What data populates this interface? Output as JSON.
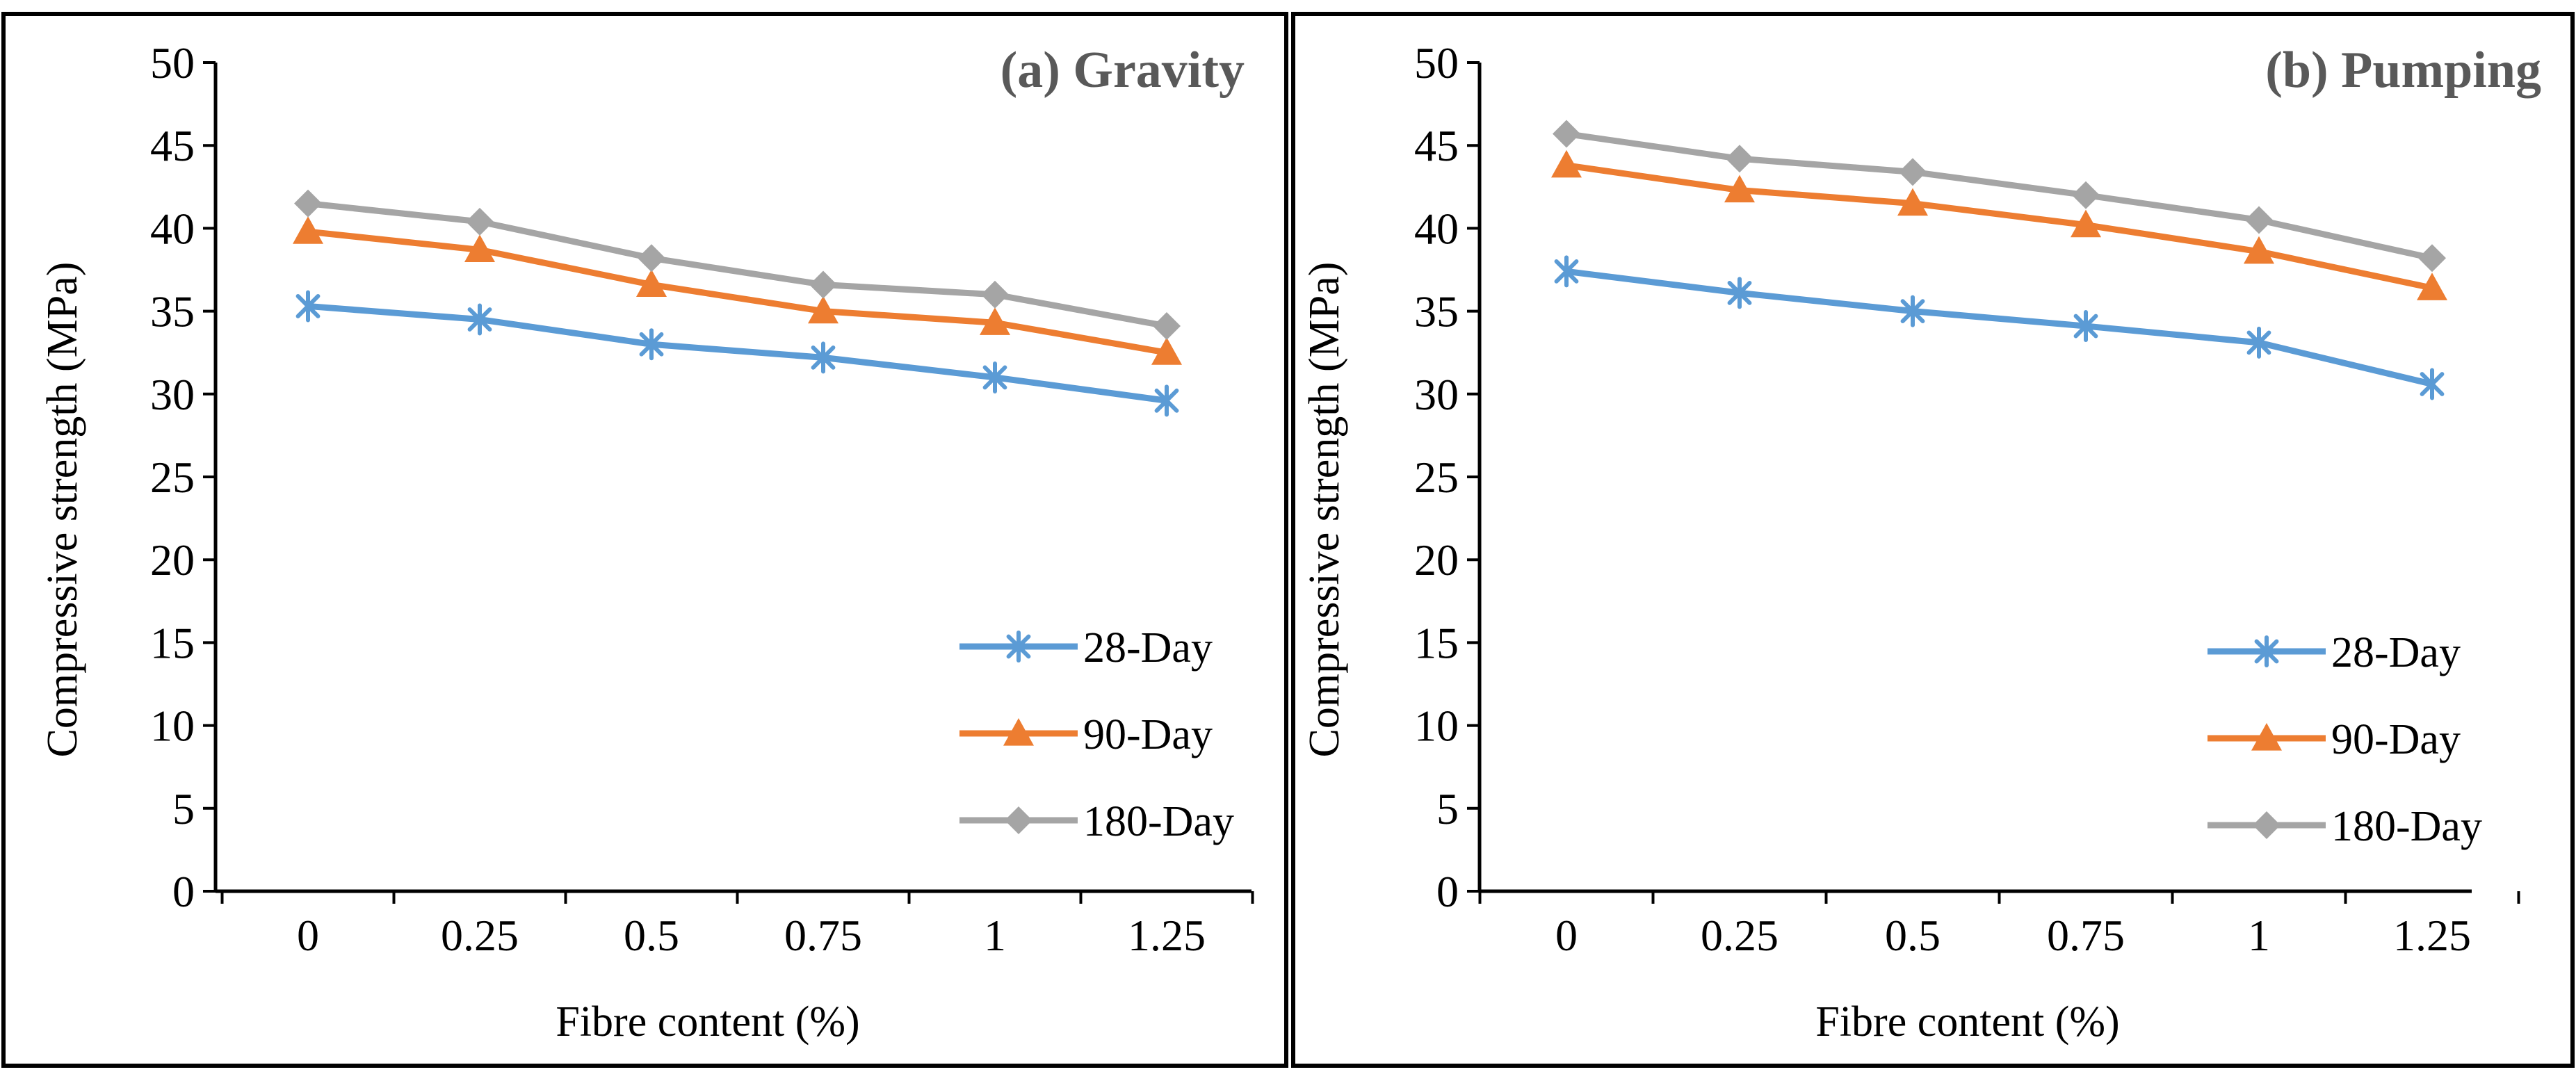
{
  "chart_data": [
    {
      "type": "line",
      "title": "(a) Gravity",
      "xlabel": "Fibre content (%)",
      "ylabel": "Compressive strength (MPa)",
      "categories": [
        "0",
        "0.25",
        "0.5",
        "0.75",
        "1",
        "1.25"
      ],
      "ylim": [
        0,
        50
      ],
      "yticks": [
        "0",
        "5",
        "10",
        "15",
        "20",
        "25",
        "30",
        "35",
        "40",
        "45",
        "50"
      ],
      "grid": false,
      "legend_position": "bottom-right",
      "series": [
        {
          "name": "28-Day",
          "values": [
            35.3,
            34.5,
            33.0,
            32.2,
            31.0,
            29.6
          ],
          "color": "#5b9bd5",
          "marker": "asterisk"
        },
        {
          "name": "90-Day",
          "values": [
            39.8,
            38.7,
            36.6,
            35.0,
            34.3,
            32.5
          ],
          "color": "#ed7d31",
          "marker": "triangle"
        },
        {
          "name": "180-Day",
          "values": [
            41.5,
            40.4,
            38.2,
            36.6,
            36.0,
            34.1
          ],
          "color": "#a5a5a5",
          "marker": "diamond"
        }
      ]
    },
    {
      "type": "line",
      "title": "(b) Pumping",
      "xlabel": "Fibre content (%)",
      "ylabel": "Compressive strength (MPa)",
      "categories": [
        "0",
        "0.25",
        "0.5",
        "0.75",
        "1",
        "1.25"
      ],
      "ylim": [
        0,
        50
      ],
      "yticks": [
        "0",
        "5",
        "10",
        "15",
        "20",
        "25",
        "30",
        "35",
        "40",
        "45",
        "50"
      ],
      "grid": false,
      "legend_position": "bottom-right",
      "series": [
        {
          "name": "28-Day",
          "values": [
            37.4,
            36.1,
            35.0,
            34.1,
            33.1,
            30.6
          ],
          "color": "#5b9bd5",
          "marker": "asterisk"
        },
        {
          "name": "90-Day",
          "values": [
            43.8,
            42.3,
            41.5,
            40.2,
            38.6,
            36.4
          ],
          "color": "#ed7d31",
          "marker": "triangle"
        },
        {
          "name": "180-Day",
          "values": [
            45.7,
            44.2,
            43.4,
            42.0,
            40.5,
            38.2
          ],
          "color": "#a5a5a5",
          "marker": "diamond"
        }
      ]
    }
  ]
}
